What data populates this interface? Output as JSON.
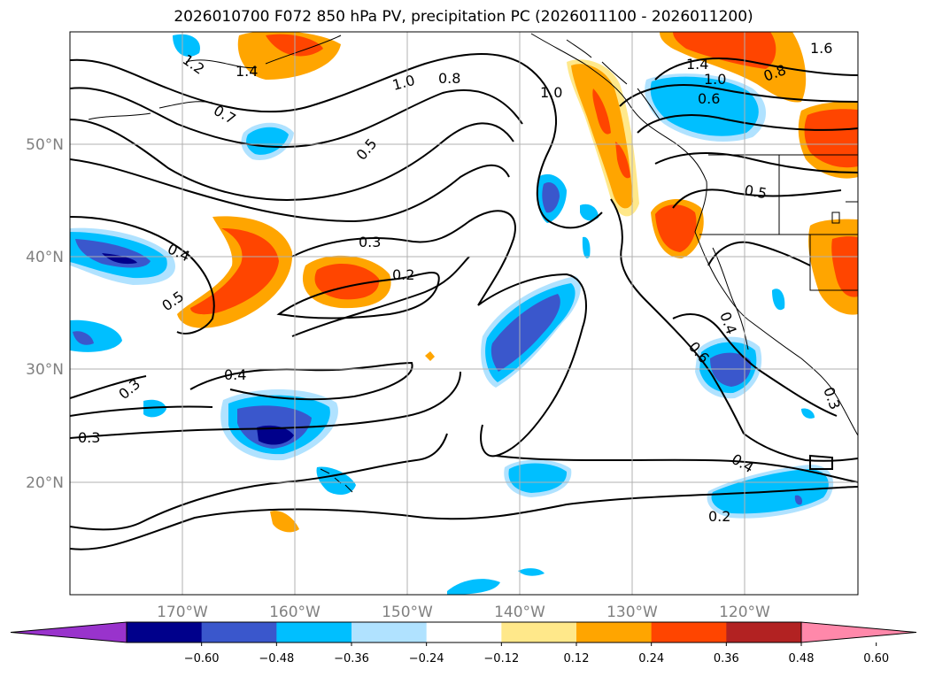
{
  "title": "2026010700 F072 850 hPa PV, precipitation PC (2026011100 - 2026011200)",
  "map": {
    "lat_labels": [
      "50°N",
      "40°N",
      "30°N",
      "20°N"
    ],
    "lon_labels": [
      "170°W",
      "160°W",
      "150°W",
      "140°W",
      "130°W",
      "120°W"
    ],
    "contour_labels": [
      "1.2",
      "1.4",
      "1.0",
      "0.8",
      "1.0",
      "1.4",
      "1.0",
      "1.6",
      "0.8",
      "0.6",
      "0.7",
      "0.5",
      "0.5",
      "0.3",
      "0.4",
      "0.5",
      "0.2",
      "0.3",
      "0.4",
      "0.3",
      "0.6",
      "0.4",
      "0.4",
      "0.2",
      "0.3"
    ]
  },
  "colorbar": {
    "ticks": [
      "−0.60",
      "−0.48",
      "−0.36",
      "−0.24",
      "−0.12",
      "0.12",
      "0.24",
      "0.36",
      "0.48",
      "0.60"
    ],
    "colors": [
      "#9933cc",
      "#00008b",
      "#3a57cc",
      "#00bfff",
      "#b0e2ff",
      "#ffffff",
      "#ffe88a",
      "#ffa500",
      "#ff4500",
      "#b22222",
      "#ff88aa"
    ]
  }
}
